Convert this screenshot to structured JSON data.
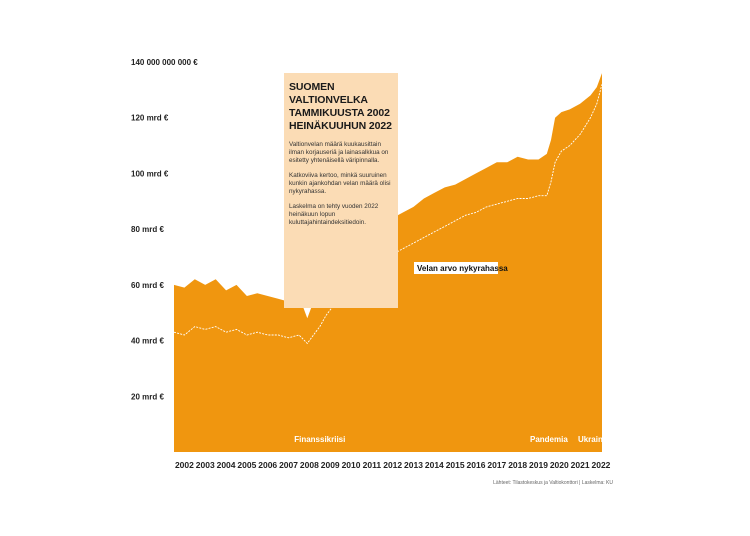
{
  "chart_data": {
    "type": "area",
    "title": "SUOMEN VALTIONVELKA TAMMIKUUSTA 2002 HEINÄKUUHUN 2022",
    "description": [
      "Valtionvelan määrä kuukausittain ilman korjauseriä ja lainasalkkua on esitetty yhtenäisellä väripinnalla.",
      "Katkoviiva kertoo, minkä suuruinen kunkin ajankohdan velan määrä olisi nykyrahassa.",
      "Laskelma on tehty vuoden 2022 heinäkuun lopun kuluttajahintaindeksitiedoin."
    ],
    "y_ticks": [
      {
        "value": 20,
        "label": "20 mrd €"
      },
      {
        "value": 40,
        "label": "40 mrd €"
      },
      {
        "value": 60,
        "label": "60 mrd €"
      },
      {
        "value": 80,
        "label": "80 mrd €"
      },
      {
        "value": 100,
        "label": "100 mrd €"
      },
      {
        "value": 120,
        "label": "120 mrd €"
      },
      {
        "value": 140,
        "label": "140 000 000 000 €"
      }
    ],
    "ylim": [
      0,
      140
    ],
    "x_ticks": [
      "2002",
      "2003",
      "2004",
      "2005",
      "2006",
      "2007",
      "2008",
      "2009",
      "2010",
      "2011",
      "2012",
      "2013",
      "2014",
      "2015",
      "2016",
      "2017",
      "2018",
      "2019",
      "2020",
      "2021",
      "2022"
    ],
    "xlim": [
      2002.0,
      2022.55
    ],
    "series": [
      {
        "name": "",
        "style": "area",
        "color": "#f0960f",
        "x": [
          2002.0,
          2002.5,
          2003.0,
          2003.5,
          2004.0,
          2004.5,
          2005.0,
          2005.5,
          2006.0,
          2006.5,
          2007.0,
          2007.5,
          2008.0,
          2008.4,
          2008.7,
          2009.0,
          2009.3,
          2009.6,
          2010.0,
          2010.5,
          2011.0,
          2011.5,
          2012.0,
          2012.5,
          2013.0,
          2013.5,
          2014.0,
          2014.5,
          2015.0,
          2015.5,
          2016.0,
          2016.5,
          2017.0,
          2017.5,
          2018.0,
          2018.5,
          2019.0,
          2019.5,
          2019.9,
          2020.1,
          2020.3,
          2020.6,
          2021.0,
          2021.5,
          2022.0,
          2022.3,
          2022.55
        ],
        "y": [
          60,
          59,
          62,
          60,
          62,
          58,
          60,
          56,
          57,
          56,
          55,
          54,
          56,
          48,
          54,
          58,
          63,
          66,
          69,
          72,
          76,
          79,
          82,
          84,
          86,
          88,
          91,
          93,
          95,
          96,
          98,
          100,
          102,
          104,
          104,
          106,
          105,
          105,
          107,
          112,
          120,
          122,
          123,
          125,
          128,
          131,
          136
        ]
      },
      {
        "name": "Velan arvo nykyrahassa",
        "style": "dashed",
        "color": "#ffffff",
        "x": [
          2002.0,
          2002.5,
          2003.0,
          2003.5,
          2004.0,
          2004.5,
          2005.0,
          2005.5,
          2006.0,
          2006.5,
          2007.0,
          2007.5,
          2008.0,
          2008.4,
          2008.7,
          2009.0,
          2009.3,
          2009.6,
          2010.0,
          2010.5,
          2011.0,
          2011.5,
          2012.0,
          2012.5,
          2013.0,
          2013.5,
          2014.0,
          2014.5,
          2015.0,
          2015.5,
          2016.0,
          2016.5,
          2017.0,
          2017.5,
          2018.0,
          2018.5,
          2019.0,
          2019.5,
          2019.9,
          2020.1,
          2020.3,
          2020.6,
          2021.0,
          2021.5,
          2022.0,
          2022.3,
          2022.55
        ],
        "y": [
          43,
          42,
          45,
          44,
          45,
          43,
          44,
          42,
          43,
          42,
          42,
          41,
          42,
          39,
          42,
          45,
          49,
          52,
          55,
          58,
          62,
          65,
          68,
          71,
          73,
          75,
          77,
          79,
          81,
          83,
          85,
          86,
          88,
          89,
          90,
          91,
          91,
          92,
          92,
          97,
          104,
          108,
          110,
          114,
          120,
          125,
          132
        ]
      }
    ],
    "annotations": [
      {
        "text": "Finanssikriisi",
        "x": 2009.0
      },
      {
        "text": "Pandemia",
        "x": 2020.0
      },
      {
        "text": "Ukraina",
        "x": 2022.1
      }
    ],
    "series_label": "Velan arvo nykyrahassa",
    "source": "Lähteet: Tilastokeskus ja Valtiokonttori | Laskelma: KU",
    "legend": "none",
    "grid": false,
    "colors": {
      "area": "#f0960f",
      "dashed": "#ffffff",
      "info_box": "#fbdcb5"
    }
  }
}
